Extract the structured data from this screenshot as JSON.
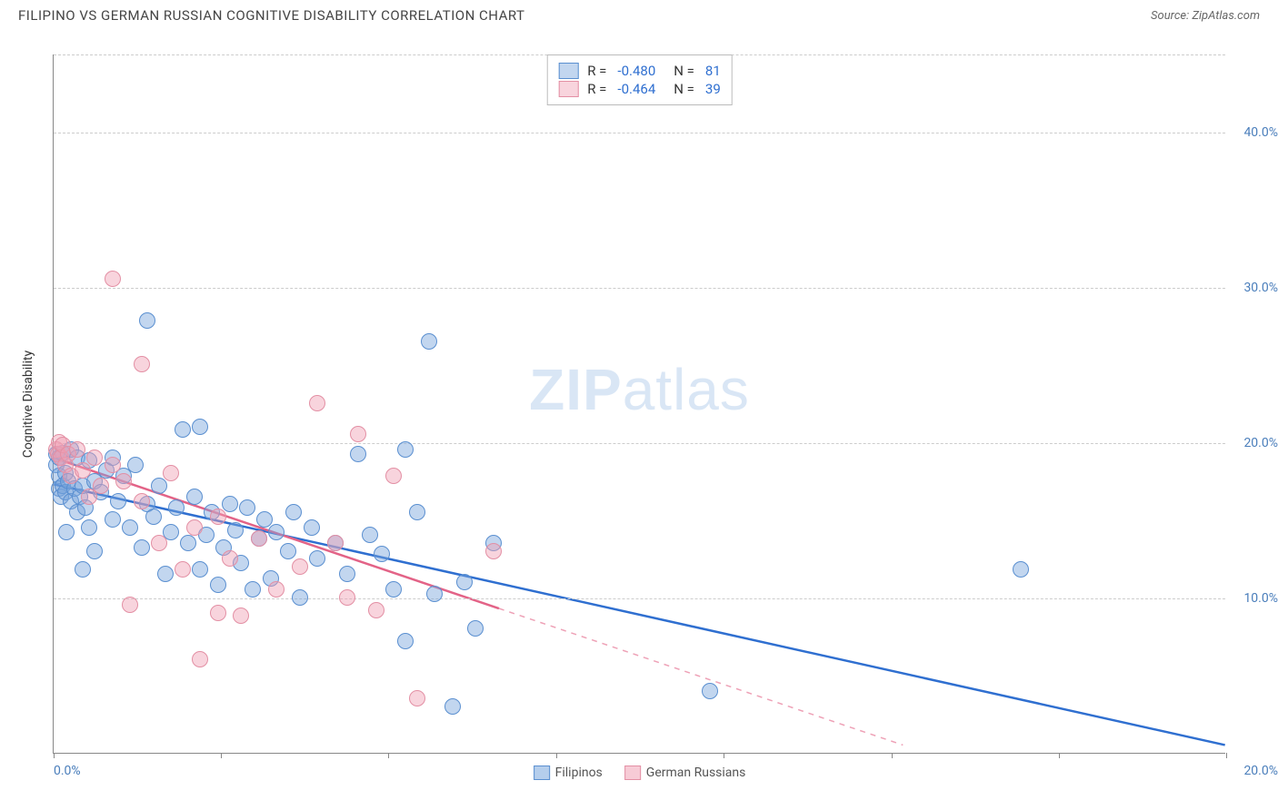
{
  "header": {
    "title": "FILIPINO VS GERMAN RUSSIAN COGNITIVE DISABILITY CORRELATION CHART",
    "source_prefix": "Source: ",
    "source_link": "ZipAtlas.com"
  },
  "watermark": {
    "zip": "ZIP",
    "atlas": "atlas"
  },
  "chart": {
    "type": "scatter",
    "y_axis_title": "Cognitive Disability",
    "background_color": "#ffffff",
    "grid_color": "#cccccc",
    "axis_color": "#888888",
    "tick_label_color": "#4a7ebb",
    "tick_label_fontsize": 14,
    "xlim": [
      0,
      20
    ],
    "ylim": [
      0,
      45
    ],
    "y_gridlines": [
      10,
      20,
      30,
      40,
      45
    ],
    "y_tick_labels": {
      "10": "10.0%",
      "20": "20.0%",
      "30": "30.0%",
      "40": "40.0%"
    },
    "x_ticks": [
      0,
      2.86,
      5.71,
      8.57,
      11.43,
      14.29,
      17.14,
      20
    ],
    "x_tick_labels": {
      "0": "0.0%",
      "20": "20.0%"
    },
    "marker_radius": 9,
    "marker_border_width": 1.2,
    "trend_line_width": 2.5,
    "series": [
      {
        "name": "Filipinos",
        "fill_color": "rgba(120,165,220,0.45)",
        "stroke_color": "#5a8fd0",
        "line_color": "#2f6fd0",
        "trend": {
          "x1": 0,
          "y1": 17.3,
          "x2": 20,
          "y2": 0.5,
          "dash_from_x": null
        },
        "R": "-0.480",
        "N": "81",
        "points": [
          [
            0.05,
            19.2
          ],
          [
            0.05,
            18.5
          ],
          [
            0.1,
            19.0
          ],
          [
            0.1,
            17.8
          ],
          [
            0.1,
            17.0
          ],
          [
            0.12,
            16.5
          ],
          [
            0.15,
            19.3
          ],
          [
            0.15,
            17.2
          ],
          [
            0.2,
            18.0
          ],
          [
            0.2,
            16.8
          ],
          [
            0.22,
            14.2
          ],
          [
            0.25,
            17.5
          ],
          [
            0.3,
            19.5
          ],
          [
            0.3,
            16.2
          ],
          [
            0.35,
            17.0
          ],
          [
            0.4,
            15.5
          ],
          [
            0.4,
            19.0
          ],
          [
            0.45,
            16.5
          ],
          [
            0.5,
            17.2
          ],
          [
            0.5,
            11.8
          ],
          [
            0.55,
            15.8
          ],
          [
            0.6,
            18.8
          ],
          [
            0.6,
            14.5
          ],
          [
            0.7,
            17.5
          ],
          [
            0.7,
            13.0
          ],
          [
            0.8,
            16.8
          ],
          [
            0.9,
            18.2
          ],
          [
            1.0,
            15.0
          ],
          [
            1.0,
            19.0
          ],
          [
            1.1,
            16.2
          ],
          [
            1.2,
            17.8
          ],
          [
            1.3,
            14.5
          ],
          [
            1.4,
            18.5
          ],
          [
            1.5,
            13.2
          ],
          [
            1.6,
            27.8
          ],
          [
            1.6,
            16.0
          ],
          [
            1.7,
            15.2
          ],
          [
            1.8,
            17.2
          ],
          [
            1.9,
            11.5
          ],
          [
            2.0,
            14.2
          ],
          [
            2.1,
            15.8
          ],
          [
            2.2,
            20.8
          ],
          [
            2.3,
            13.5
          ],
          [
            2.4,
            16.5
          ],
          [
            2.5,
            21.0
          ],
          [
            2.5,
            11.8
          ],
          [
            2.6,
            14.0
          ],
          [
            2.7,
            15.5
          ],
          [
            2.8,
            10.8
          ],
          [
            2.9,
            13.2
          ],
          [
            3.0,
            16.0
          ],
          [
            3.1,
            14.3
          ],
          [
            3.2,
            12.2
          ],
          [
            3.3,
            15.8
          ],
          [
            3.4,
            10.5
          ],
          [
            3.5,
            13.8
          ],
          [
            3.6,
            15.0
          ],
          [
            3.7,
            11.2
          ],
          [
            3.8,
            14.2
          ],
          [
            4.0,
            13.0
          ],
          [
            4.1,
            15.5
          ],
          [
            4.2,
            10.0
          ],
          [
            4.4,
            14.5
          ],
          [
            4.5,
            12.5
          ],
          [
            4.8,
            13.5
          ],
          [
            5.0,
            11.5
          ],
          [
            5.2,
            19.2
          ],
          [
            5.4,
            14.0
          ],
          [
            5.6,
            12.8
          ],
          [
            5.8,
            10.5
          ],
          [
            6.0,
            19.5
          ],
          [
            6.0,
            7.2
          ],
          [
            6.2,
            15.5
          ],
          [
            6.4,
            26.5
          ],
          [
            6.5,
            10.2
          ],
          [
            6.8,
            3.0
          ],
          [
            7.0,
            11.0
          ],
          [
            7.2,
            8.0
          ],
          [
            7.5,
            13.5
          ],
          [
            11.2,
            4.0
          ],
          [
            16.5,
            11.8
          ]
        ]
      },
      {
        "name": "German Russians",
        "fill_color": "rgba(240,160,180,0.45)",
        "stroke_color": "#e38fa4",
        "line_color": "#e36387",
        "trend": {
          "x1": 0,
          "y1": 19.0,
          "x2": 14.5,
          "y2": 0.5,
          "dash_from_x": 7.6
        },
        "R": "-0.464",
        "N": "39",
        "points": [
          [
            0.05,
            19.5
          ],
          [
            0.08,
            19.2
          ],
          [
            0.1,
            20.0
          ],
          [
            0.12,
            19.0
          ],
          [
            0.15,
            19.8
          ],
          [
            0.2,
            18.5
          ],
          [
            0.25,
            19.2
          ],
          [
            0.3,
            17.8
          ],
          [
            0.4,
            19.5
          ],
          [
            0.5,
            18.2
          ],
          [
            0.6,
            16.5
          ],
          [
            0.7,
            19.0
          ],
          [
            0.8,
            17.2
          ],
          [
            1.0,
            18.5
          ],
          [
            1.0,
            30.5
          ],
          [
            1.2,
            17.5
          ],
          [
            1.3,
            9.5
          ],
          [
            1.5,
            25.0
          ],
          [
            1.5,
            16.2
          ],
          [
            1.8,
            13.5
          ],
          [
            2.0,
            18.0
          ],
          [
            2.2,
            11.8
          ],
          [
            2.4,
            14.5
          ],
          [
            2.5,
            6.0
          ],
          [
            2.8,
            15.2
          ],
          [
            2.8,
            9.0
          ],
          [
            3.0,
            12.5
          ],
          [
            3.2,
            8.8
          ],
          [
            3.5,
            13.8
          ],
          [
            3.8,
            10.5
          ],
          [
            4.2,
            12.0
          ],
          [
            4.5,
            22.5
          ],
          [
            4.8,
            13.5
          ],
          [
            5.0,
            10.0
          ],
          [
            5.2,
            20.5
          ],
          [
            5.5,
            9.2
          ],
          [
            5.8,
            17.8
          ],
          [
            6.2,
            3.5
          ],
          [
            7.5,
            13.0
          ]
        ]
      }
    ],
    "legend_bottom": [
      {
        "label": "Filipinos",
        "fill": "rgba(120,165,220,0.55)",
        "stroke": "#5a8fd0"
      },
      {
        "label": "German Russians",
        "fill": "rgba(240,160,180,0.55)",
        "stroke": "#e38fa4"
      }
    ]
  }
}
